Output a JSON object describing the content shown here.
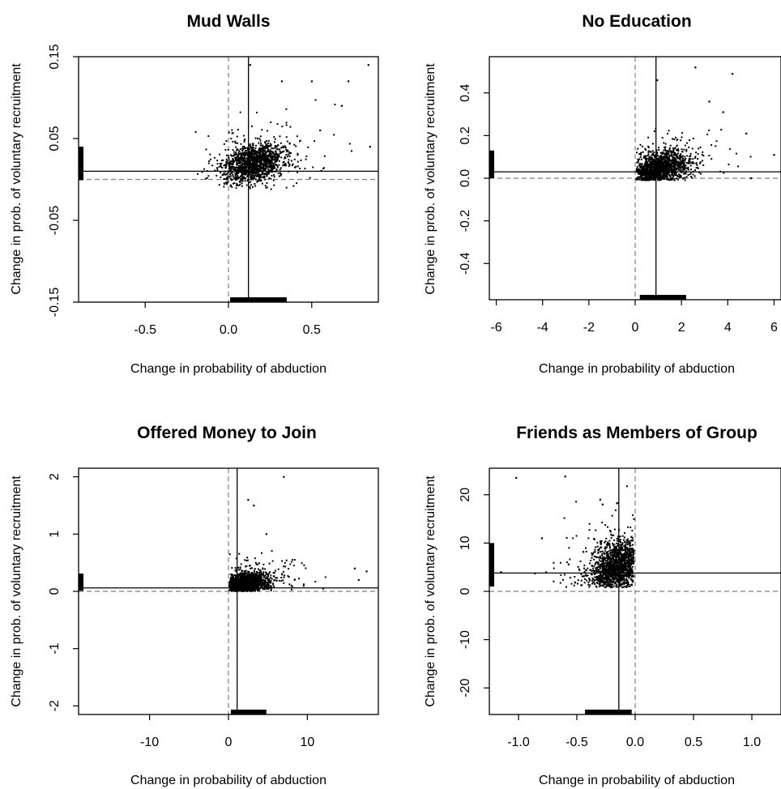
{
  "chart_data": [
    {
      "type": "scatter",
      "title": "Mud Walls",
      "xlabel": "Change in probability of abduction",
      "ylabel": "Change in prob. of voluntary recruitment",
      "xlim": [
        -0.9,
        0.9
      ],
      "ylim": [
        -0.15,
        0.15
      ],
      "xticks": [
        -0.5,
        0.0,
        0.5
      ],
      "xtick_labels": [
        "-0.5",
        "0.0",
        "0.5"
      ],
      "yticks": [
        -0.15,
        -0.05,
        0.05,
        0.15
      ],
      "ytick_labels": [
        "-0.15",
        "-0.05",
        "0.05",
        "0.15"
      ],
      "mean_x": 0.12,
      "mean_y": 0.01,
      "rug_x": [
        0.01,
        0.35
      ],
      "rug_y": [
        -0.001,
        0.04
      ],
      "cloud": {
        "x_center": 0.15,
        "y_center": 0.02,
        "x_spread": 0.09,
        "y_spread": 0.012,
        "x_min": -0.2,
        "x_max": 0.85,
        "y_min": -0.012,
        "y_max": 0.145
      },
      "outliers": [
        [
          0.13,
          0.14
        ],
        [
          0.32,
          0.12
        ],
        [
          0.5,
          0.12
        ],
        [
          0.72,
          0.12
        ],
        [
          0.84,
          0.14
        ],
        [
          0.85,
          0.04
        ],
        [
          0.68,
          0.09
        ],
        [
          0.55,
          0.06
        ]
      ]
    },
    {
      "type": "scatter",
      "title": "No Education",
      "xlabel": "Change in probability of abduction",
      "ylabel": "Change in prob. of voluntary recruitment",
      "xlim": [
        -6.3,
        6.3
      ],
      "ylim": [
        -0.57,
        0.57
      ],
      "xticks": [
        -6,
        -4,
        -2,
        0,
        2,
        4,
        6
      ],
      "xtick_labels": [
        "-6",
        "-4",
        "-2",
        "0",
        "2",
        "4",
        "6"
      ],
      "yticks": [
        -0.4,
        -0.2,
        0.0,
        0.2,
        0.4
      ],
      "ytick_labels": [
        "-0.4",
        "-0.2",
        "0.0",
        "0.2",
        "0.4"
      ],
      "mean_x": 0.9,
      "mean_y": 0.03,
      "rug_x": [
        0.2,
        2.2
      ],
      "rug_y": [
        0.0,
        0.13
      ],
      "cloud": {
        "x_center": 1.0,
        "y_center": 0.04,
        "x_spread": 0.6,
        "y_spread": 0.04,
        "x_min": 0.05,
        "x_max": 6.2,
        "y_min": -0.01,
        "y_max": 0.52
      },
      "outliers": [
        [
          0.95,
          0.46
        ],
        [
          2.6,
          0.52
        ],
        [
          4.2,
          0.49
        ],
        [
          4.8,
          0.21
        ],
        [
          6.0,
          0.11
        ],
        [
          5.0,
          0.0
        ],
        [
          3.8,
          0.31
        ],
        [
          3.2,
          0.36
        ]
      ]
    },
    {
      "type": "scatter",
      "title": "Offered Money to Join",
      "xlabel": "Change in probability of abduction",
      "ylabel": "Change in prob. of voluntary recruitment",
      "xlim": [
        -19,
        19
      ],
      "ylim": [
        -2.15,
        2.15
      ],
      "xticks": [
        -10,
        0,
        10
      ],
      "xtick_labels": [
        "-10",
        "0",
        "10"
      ],
      "yticks": [
        -2,
        -1,
        0,
        1,
        2
      ],
      "ytick_labels": [
        "-2",
        "-1",
        "0",
        "1",
        "2"
      ],
      "mean_x": 1.1,
      "mean_y": 0.06,
      "rug_x": [
        0.3,
        4.8
      ],
      "rug_y": [
        0.01,
        0.31
      ],
      "cloud": {
        "x_center": 1.8,
        "y_center": 0.12,
        "x_spread": 1.5,
        "y_spread": 0.1,
        "x_min": 0.1,
        "x_max": 18.0,
        "y_min": 0.0,
        "y_max": 2.0
      },
      "outliers": [
        [
          7.0,
          2.0
        ],
        [
          2.5,
          1.6
        ],
        [
          3.2,
          1.5
        ],
        [
          4.8,
          1.0
        ],
        [
          16.0,
          0.4
        ],
        [
          17.5,
          0.35
        ],
        [
          16.5,
          0.2
        ],
        [
          12.0,
          0.05
        ]
      ]
    },
    {
      "type": "scatter",
      "title": "Friends as Members of Group",
      "xlabel": "Change in probability of abduction",
      "ylabel": "Change in prob. of voluntary recruitment",
      "xlim": [
        -1.25,
        1.25
      ],
      "ylim": [
        -25.5,
        25.5
      ],
      "xticks": [
        -1.0,
        -0.5,
        0.0,
        0.5,
        1.0
      ],
      "xtick_labels": [
        "-1.0",
        "-0.5",
        "0.0",
        "0.5",
        "1.0"
      ],
      "yticks": [
        -20,
        -10,
        0,
        10,
        20
      ],
      "ytick_labels": [
        "-20",
        "-10",
        "0",
        "10",
        "20"
      ],
      "mean_x": -0.14,
      "mean_y": 3.8,
      "rug_x": [
        -0.43,
        -0.03
      ],
      "rug_y": [
        1.0,
        10.0
      ],
      "cloud": {
        "x_center": -0.15,
        "y_center": 5.0,
        "x_spread": 0.12,
        "y_spread": 3.0,
        "x_min": -1.2,
        "x_max": -0.01,
        "y_min": 0.8,
        "y_max": 24.0
      },
      "outliers": [
        [
          -1.02,
          23.5
        ],
        [
          -0.6,
          23.8
        ],
        [
          -0.8,
          11.0
        ],
        [
          -1.15,
          4.0
        ],
        [
          -0.3,
          19.0
        ],
        [
          -0.28,
          18.0
        ]
      ]
    }
  ]
}
